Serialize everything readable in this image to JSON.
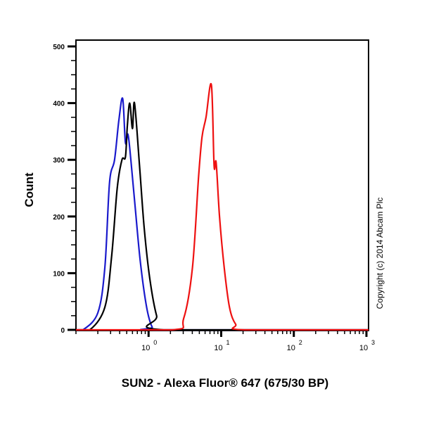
{
  "chart_data": {
    "type": "line",
    "subtype": "flow-cytometry-histogram",
    "title": "",
    "xlabel": "SUN2 - Alexa Fluor® 647 (675/30 BP)",
    "ylabel": "Count",
    "xscale": "log",
    "xlim": [
      0.1,
      1000
    ],
    "ylim": [
      0,
      500
    ],
    "x_ticks": [
      {
        "value": 1,
        "label_base": "10",
        "label_exp": "0"
      },
      {
        "value": 10,
        "label_base": "10",
        "label_exp": "1"
      },
      {
        "value": 100,
        "label_base": "10",
        "label_exp": "2"
      },
      {
        "value": 1000,
        "label_base": "10",
        "label_exp": "3"
      }
    ],
    "y_ticks": [
      0,
      100,
      200,
      300,
      400,
      500
    ],
    "y_minor_step": 25,
    "grid": false,
    "legend": null,
    "annotation": "Copyright (c) 2014 Abcam Plc",
    "series": [
      {
        "name": "blue",
        "color": "#1a1acc",
        "x": [
          0.125,
          0.2,
          0.25,
          0.29,
          0.34,
          0.39,
          0.44,
          0.48,
          0.52,
          0.57,
          0.65,
          0.77,
          0.94,
          1.12,
          1.34
        ],
        "y": [
          0,
          30,
          110,
          260,
          300,
          370,
          408,
          330,
          345,
          300,
          220,
          120,
          40,
          5,
          0
        ]
      },
      {
        "name": "black",
        "color": "#000000",
        "x": [
          0.155,
          0.25,
          0.31,
          0.37,
          0.43,
          0.48,
          0.51,
          0.55,
          0.6,
          0.64,
          0.75,
          0.87,
          1.04,
          1.29,
          1.61
        ],
        "y": [
          0,
          40,
          130,
          250,
          300,
          305,
          360,
          400,
          355,
          400,
          290,
          180,
          90,
          25,
          0
        ]
      },
      {
        "name": "red",
        "color": "#ee1111",
        "x": [
          2.12,
          3.04,
          4.02,
          4.88,
          5.44,
          6.18,
          7.33,
          7.98,
          8.52,
          9.48,
          11.0,
          13.0,
          15.8,
          20.8
        ],
        "y": [
          0,
          20,
          110,
          270,
          340,
          375,
          432,
          290,
          295,
          200,
          110,
          40,
          10,
          0
        ]
      }
    ]
  }
}
